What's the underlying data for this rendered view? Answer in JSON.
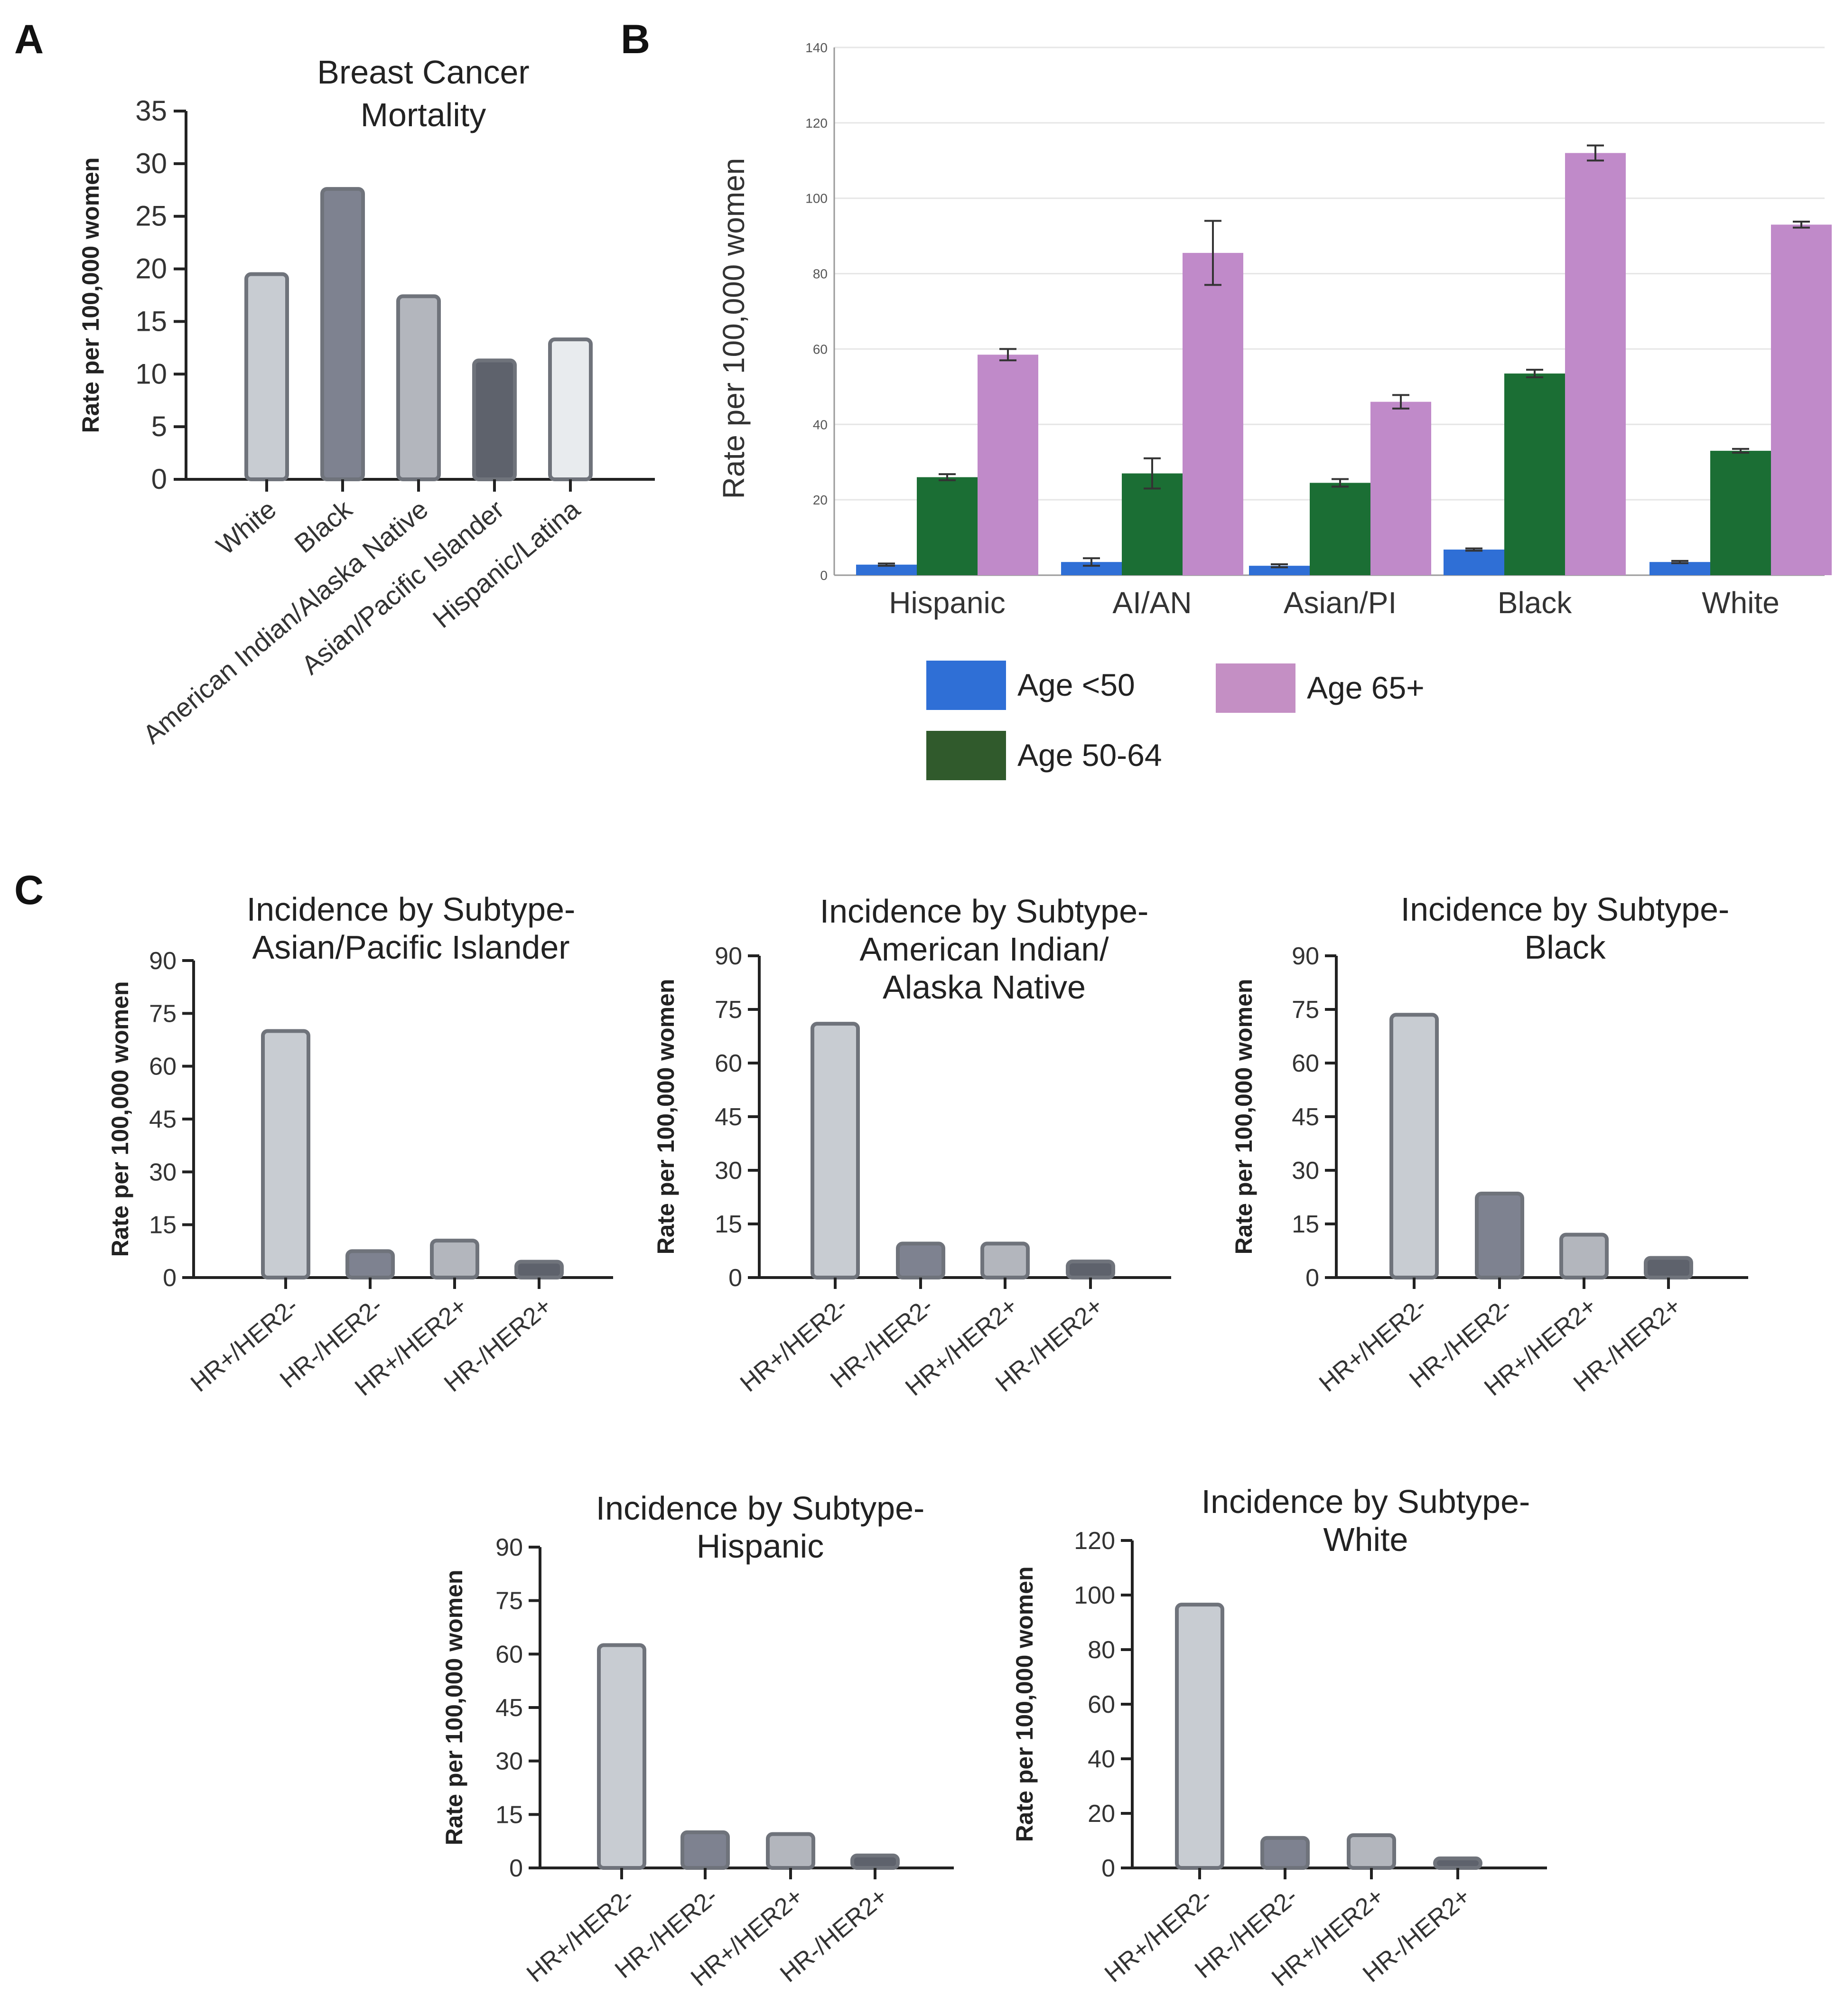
{
  "panels": {
    "a": "A",
    "b": "B",
    "c": "C"
  },
  "colors": {
    "white_fill": "#c8ccd2",
    "black_fill": "#7e8290",
    "aian_fill": "#b3b6bd",
    "api_fill": "#5e626c",
    "hisp_fill": "#e8ebee",
    "bar_stroke": "#6f737b",
    "hr_pos_her2_neg": "#c8ccd2",
    "hr_neg_her2_neg": "#7e8290",
    "hr_pos_her2_pos": "#b3b6bd",
    "hr_neg_her2_pos": "#5e626c",
    "age_lt50": "#2f6fd6",
    "age_50_64": "#1b6e34",
    "age_65plus": "#c08ac9",
    "legend_50_64": "#305a2c",
    "legend_65plus": "#c48fc4",
    "error_bar": "#333333"
  },
  "chart_data": [
    {
      "id": "A",
      "type": "bar",
      "title_lines": [
        "Breast Cancer",
        "Mortality"
      ],
      "ylabel": "Rate per 100,000 women",
      "categories": [
        "White",
        "Black",
        "American Indian/Alaska Native",
        "Asian/Pacific Islander",
        "Hispanic/Latina"
      ],
      "values": [
        19.5,
        27.6,
        17.4,
        11.3,
        13.3
      ],
      "ylim": [
        0,
        35
      ],
      "yticks": [
        0,
        5,
        10,
        15,
        20,
        25,
        30,
        35
      ]
    },
    {
      "id": "B",
      "type": "bar",
      "ylabel": "Rate per 100,000 women",
      "categories": [
        "Hispanic",
        "AI/AN",
        "Asian/PI",
        "Black",
        "White"
      ],
      "ylim": [
        0,
        140
      ],
      "yticks": [
        0,
        20,
        40,
        60,
        80,
        100,
        120,
        140
      ],
      "grid": true,
      "legend": [
        "Age <50",
        "Age 65+",
        "Age 50-64"
      ],
      "series": [
        {
          "name": "Age <50",
          "values": [
            2.8,
            3.5,
            2.5,
            6.8,
            3.5
          ],
          "errors": [
            0.3,
            1.0,
            0.4,
            0.3,
            0.3
          ]
        },
        {
          "name": "Age 50-64",
          "values": [
            26,
            27,
            24.5,
            53.5,
            33
          ],
          "errors": [
            0.8,
            4.0,
            1.0,
            1.0,
            0.5
          ]
        },
        {
          "name": "Age 65+",
          "values": [
            58.5,
            85.5,
            46,
            112,
            93
          ],
          "errors": [
            1.5,
            8.5,
            1.8,
            2.0,
            0.8
          ]
        }
      ]
    },
    {
      "id": "C1",
      "type": "bar",
      "title_lines": [
        "Incidence by Subtype-",
        "Asian/Pacific Islander"
      ],
      "ylabel": "Rate per 100,000 women",
      "categories": [
        "HR+/HER2-",
        "HR-/HER2-",
        "HR+/HER2+",
        "HR-/HER2+"
      ],
      "values": [
        70,
        7.5,
        10.5,
        4.5
      ],
      "ylim": [
        0,
        90
      ],
      "yticks": [
        0,
        15,
        30,
        45,
        60,
        75,
        90
      ]
    },
    {
      "id": "C2",
      "type": "bar",
      "title_lines": [
        "Incidence by Subtype-",
        "American Indian/",
        "Alaska Native"
      ],
      "ylabel": "Rate per 100,000 women",
      "categories": [
        "HR+/HER2-",
        "HR-/HER2-",
        "HR+/HER2+",
        "HR-/HER2+"
      ],
      "values": [
        71,
        9.5,
        9.5,
        4.5
      ],
      "ylim": [
        0,
        90
      ],
      "yticks": [
        0,
        15,
        30,
        45,
        60,
        75,
        90
      ]
    },
    {
      "id": "C3",
      "type": "bar",
      "title_lines": [
        "Incidence by Subtype-",
        "Black"
      ],
      "ylabel": "Rate per 100,000 women",
      "categories": [
        "HR+/HER2-",
        "HR-/HER2-",
        "HR+/HER2+",
        "HR-/HER2+"
      ],
      "values": [
        73.5,
        23.5,
        12,
        5.5
      ],
      "ylim": [
        0,
        90
      ],
      "yticks": [
        0,
        15,
        30,
        45,
        60,
        75,
        90
      ]
    },
    {
      "id": "C4",
      "type": "bar",
      "title_lines": [
        "Incidence by Subtype-",
        "Hispanic"
      ],
      "ylabel": "Rate per 100,000 women",
      "categories": [
        "HR+/HER2-",
        "HR-/HER2-",
        "HR+/HER2+",
        "HR-/HER2+"
      ],
      "values": [
        62.5,
        10,
        9.5,
        3.5
      ],
      "ylim": [
        0,
        90
      ],
      "yticks": [
        0,
        15,
        30,
        45,
        60,
        75,
        90
      ]
    },
    {
      "id": "C5",
      "type": "bar",
      "title_lines": [
        "Incidence by Subtype-",
        "White"
      ],
      "ylabel": "Rate per 100,000 women",
      "categories": [
        "HR+/HER2-",
        "HR-/HER2-",
        "HR+/HER2+",
        "HR-/HER2+"
      ],
      "values": [
        96.5,
        11,
        12,
        3.5
      ],
      "ylim": [
        0,
        120
      ],
      "yticks": [
        0,
        20,
        40,
        60,
        80,
        100,
        120
      ]
    }
  ]
}
